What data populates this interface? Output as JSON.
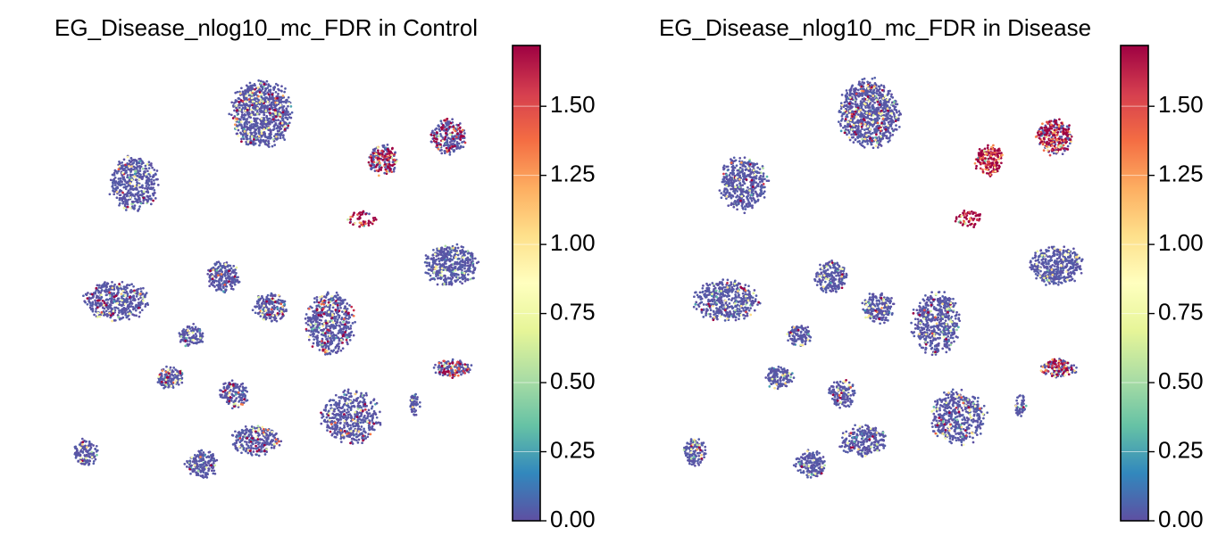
{
  "colors": {
    "spectral_r": [
      "#5e4fa2",
      "#3288bd",
      "#66c2a5",
      "#abdda4",
      "#e6f598",
      "#ffffbf",
      "#fee08b",
      "#fdae61",
      "#f46d43",
      "#d53e4f",
      "#9e0142"
    ]
  },
  "chart_data": [
    {
      "type": "scatter",
      "title": "EG_Disease_nlog10_mc_FDR in Control",
      "xlabel": "",
      "ylabel": "",
      "colormap": "Spectral_r",
      "color_range": [
        0.0,
        1.72
      ],
      "colorbar_ticks": [
        0.0,
        0.25,
        0.5,
        0.75,
        1.0,
        1.25,
        1.5
      ],
      "colorbar_tick_labels": [
        "0.00",
        "0.25",
        "0.50",
        "0.75",
        "1.00",
        "1.25",
        "1.50"
      ],
      "clusters": [
        {
          "cx": 0.38,
          "cy": 0.85,
          "rx": 0.15,
          "ry": 0.15,
          "n": 900,
          "hi_frac": 0.05
        },
        {
          "cx": -0.22,
          "cy": 0.55,
          "rx": 0.12,
          "ry": 0.12,
          "n": 450,
          "hi_frac": 0.03
        },
        {
          "cx": 0.95,
          "cy": 0.65,
          "rx": 0.07,
          "ry": 0.07,
          "n": 200,
          "hi_frac": 0.4
        },
        {
          "cx": 1.26,
          "cy": 0.75,
          "rx": 0.09,
          "ry": 0.08,
          "n": 260,
          "hi_frac": 0.25
        },
        {
          "cx": 1.27,
          "cy": 0.2,
          "rx": 0.13,
          "ry": 0.09,
          "n": 420,
          "hi_frac": 0.0
        },
        {
          "cx": -0.3,
          "cy": 0.05,
          "rx": 0.16,
          "ry": 0.09,
          "n": 450,
          "hi_frac": 0.05
        },
        {
          "cx": 0.2,
          "cy": 0.15,
          "rx": 0.08,
          "ry": 0.07,
          "n": 220,
          "hi_frac": 0.04
        },
        {
          "cx": 0.42,
          "cy": 0.02,
          "rx": 0.08,
          "ry": 0.07,
          "n": 200,
          "hi_frac": 0.05
        },
        {
          "cx": 0.7,
          "cy": -0.05,
          "rx": 0.12,
          "ry": 0.14,
          "n": 520,
          "hi_frac": 0.08
        },
        {
          "cx": 1.28,
          "cy": -0.24,
          "rx": 0.09,
          "ry": 0.04,
          "n": 160,
          "hi_frac": 0.25
        },
        {
          "cx": 0.05,
          "cy": -0.1,
          "rx": 0.06,
          "ry": 0.05,
          "n": 110,
          "hi_frac": 0.03
        },
        {
          "cx": -0.05,
          "cy": -0.28,
          "rx": 0.07,
          "ry": 0.05,
          "n": 140,
          "hi_frac": 0.05
        },
        {
          "cx": 0.25,
          "cy": -0.35,
          "rx": 0.07,
          "ry": 0.06,
          "n": 150,
          "hi_frac": 0.06
        },
        {
          "cx": 0.8,
          "cy": -0.45,
          "rx": 0.14,
          "ry": 0.12,
          "n": 480,
          "hi_frac": 0.05
        },
        {
          "cx": 0.35,
          "cy": -0.55,
          "rx": 0.12,
          "ry": 0.07,
          "n": 260,
          "hi_frac": 0.05
        },
        {
          "cx": 0.1,
          "cy": -0.65,
          "rx": 0.08,
          "ry": 0.06,
          "n": 180,
          "hi_frac": 0.02
        },
        {
          "cx": -0.45,
          "cy": -0.6,
          "rx": 0.06,
          "ry": 0.06,
          "n": 130,
          "hi_frac": 0.02
        },
        {
          "cx": 0.85,
          "cy": 0.4,
          "rx": 0.07,
          "ry": 0.04,
          "n": 50,
          "hi_frac": 0.85
        },
        {
          "cx": 1.1,
          "cy": -0.4,
          "rx": 0.03,
          "ry": 0.05,
          "n": 50,
          "hi_frac": 0.0
        }
      ]
    },
    {
      "type": "scatter",
      "title": "EG_Disease_nlog10_mc_FDR in Disease",
      "xlabel": "",
      "ylabel": "",
      "colormap": "Spectral_r",
      "color_range": [
        0.0,
        1.72
      ],
      "colorbar_ticks": [
        0.0,
        0.25,
        0.5,
        0.75,
        1.0,
        1.25,
        1.5
      ],
      "colorbar_tick_labels": [
        "0.00",
        "0.25",
        "0.50",
        "0.75",
        "1.00",
        "1.25",
        "1.50"
      ],
      "clusters": [
        {
          "cx": 0.38,
          "cy": 0.85,
          "rx": 0.15,
          "ry": 0.15,
          "n": 900,
          "hi_frac": 0.04
        },
        {
          "cx": -0.22,
          "cy": 0.55,
          "rx": 0.12,
          "ry": 0.12,
          "n": 450,
          "hi_frac": 0.02
        },
        {
          "cx": 0.95,
          "cy": 0.65,
          "rx": 0.07,
          "ry": 0.07,
          "n": 200,
          "hi_frac": 0.92
        },
        {
          "cx": 1.26,
          "cy": 0.75,
          "rx": 0.09,
          "ry": 0.08,
          "n": 300,
          "hi_frac": 0.6
        },
        {
          "cx": 1.27,
          "cy": 0.2,
          "rx": 0.13,
          "ry": 0.09,
          "n": 420,
          "hi_frac": 0.0
        },
        {
          "cx": -0.3,
          "cy": 0.05,
          "rx": 0.16,
          "ry": 0.09,
          "n": 450,
          "hi_frac": 0.02
        },
        {
          "cx": 0.2,
          "cy": 0.15,
          "rx": 0.08,
          "ry": 0.07,
          "n": 220,
          "hi_frac": 0.02
        },
        {
          "cx": 0.42,
          "cy": 0.02,
          "rx": 0.08,
          "ry": 0.07,
          "n": 200,
          "hi_frac": 0.02
        },
        {
          "cx": 0.7,
          "cy": -0.05,
          "rx": 0.12,
          "ry": 0.14,
          "n": 520,
          "hi_frac": 0.02
        },
        {
          "cx": 1.28,
          "cy": -0.24,
          "rx": 0.09,
          "ry": 0.04,
          "n": 160,
          "hi_frac": 0.3
        },
        {
          "cx": 0.05,
          "cy": -0.1,
          "rx": 0.06,
          "ry": 0.05,
          "n": 110,
          "hi_frac": 0.02
        },
        {
          "cx": -0.05,
          "cy": -0.28,
          "rx": 0.07,
          "ry": 0.05,
          "n": 140,
          "hi_frac": 0.02
        },
        {
          "cx": 0.25,
          "cy": -0.35,
          "rx": 0.07,
          "ry": 0.06,
          "n": 150,
          "hi_frac": 0.03
        },
        {
          "cx": 0.8,
          "cy": -0.45,
          "rx": 0.14,
          "ry": 0.12,
          "n": 480,
          "hi_frac": 0.03
        },
        {
          "cx": 0.35,
          "cy": -0.55,
          "rx": 0.12,
          "ry": 0.07,
          "n": 260,
          "hi_frac": 0.03
        },
        {
          "cx": 0.1,
          "cy": -0.65,
          "rx": 0.08,
          "ry": 0.06,
          "n": 180,
          "hi_frac": 0.03
        },
        {
          "cx": -0.45,
          "cy": -0.6,
          "rx": 0.06,
          "ry": 0.06,
          "n": 130,
          "hi_frac": 0.02
        },
        {
          "cx": 0.85,
          "cy": 0.4,
          "rx": 0.07,
          "ry": 0.04,
          "n": 60,
          "hi_frac": 0.95
        },
        {
          "cx": 1.1,
          "cy": -0.4,
          "rx": 0.03,
          "ry": 0.05,
          "n": 50,
          "hi_frac": 0.05
        }
      ]
    }
  ]
}
